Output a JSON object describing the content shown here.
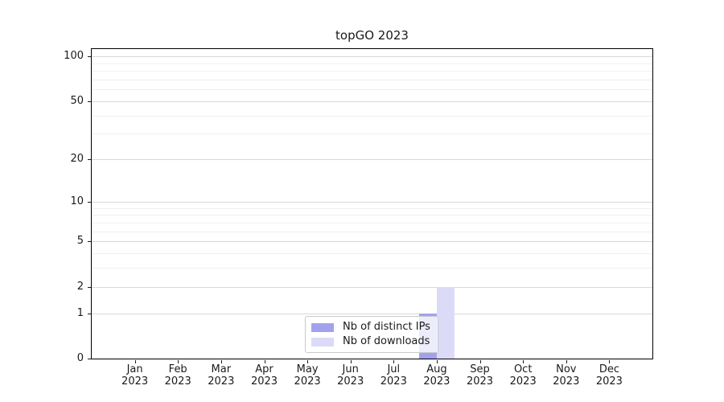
{
  "chart_data": {
    "type": "bar",
    "title": "topGO 2023",
    "x_categories": [
      "Jan",
      "Feb",
      "Mar",
      "Apr",
      "May",
      "Jun",
      "Jul",
      "Aug",
      "Sep",
      "Oct",
      "Nov",
      "Dec"
    ],
    "x_year": "2023",
    "series": [
      {
        "id": "distinct-ips",
        "name": "Nb of distinct IPs",
        "color": "#a2a2ec",
        "values": [
          0,
          0,
          0,
          0,
          0,
          0,
          0,
          1,
          0,
          0,
          0,
          0
        ]
      },
      {
        "id": "downloads",
        "name": "Nb of downloads",
        "color": "#dbdbf8",
        "values": [
          0,
          0,
          0,
          0,
          0,
          0,
          0,
          2,
          0,
          0,
          0,
          0
        ]
      }
    ],
    "y_scale": "log1p",
    "y_ticks": [
      0,
      1,
      2,
      5,
      10,
      20,
      50,
      100
    ],
    "y_minor_gridlines": [
      3,
      4,
      6,
      7,
      8,
      9,
      30,
      40,
      60,
      70,
      80,
      90
    ],
    "ylim": [
      0,
      112
    ],
    "xlabel": "",
    "ylabel": "",
    "grid": true,
    "legend_position": "bottom-center"
  }
}
